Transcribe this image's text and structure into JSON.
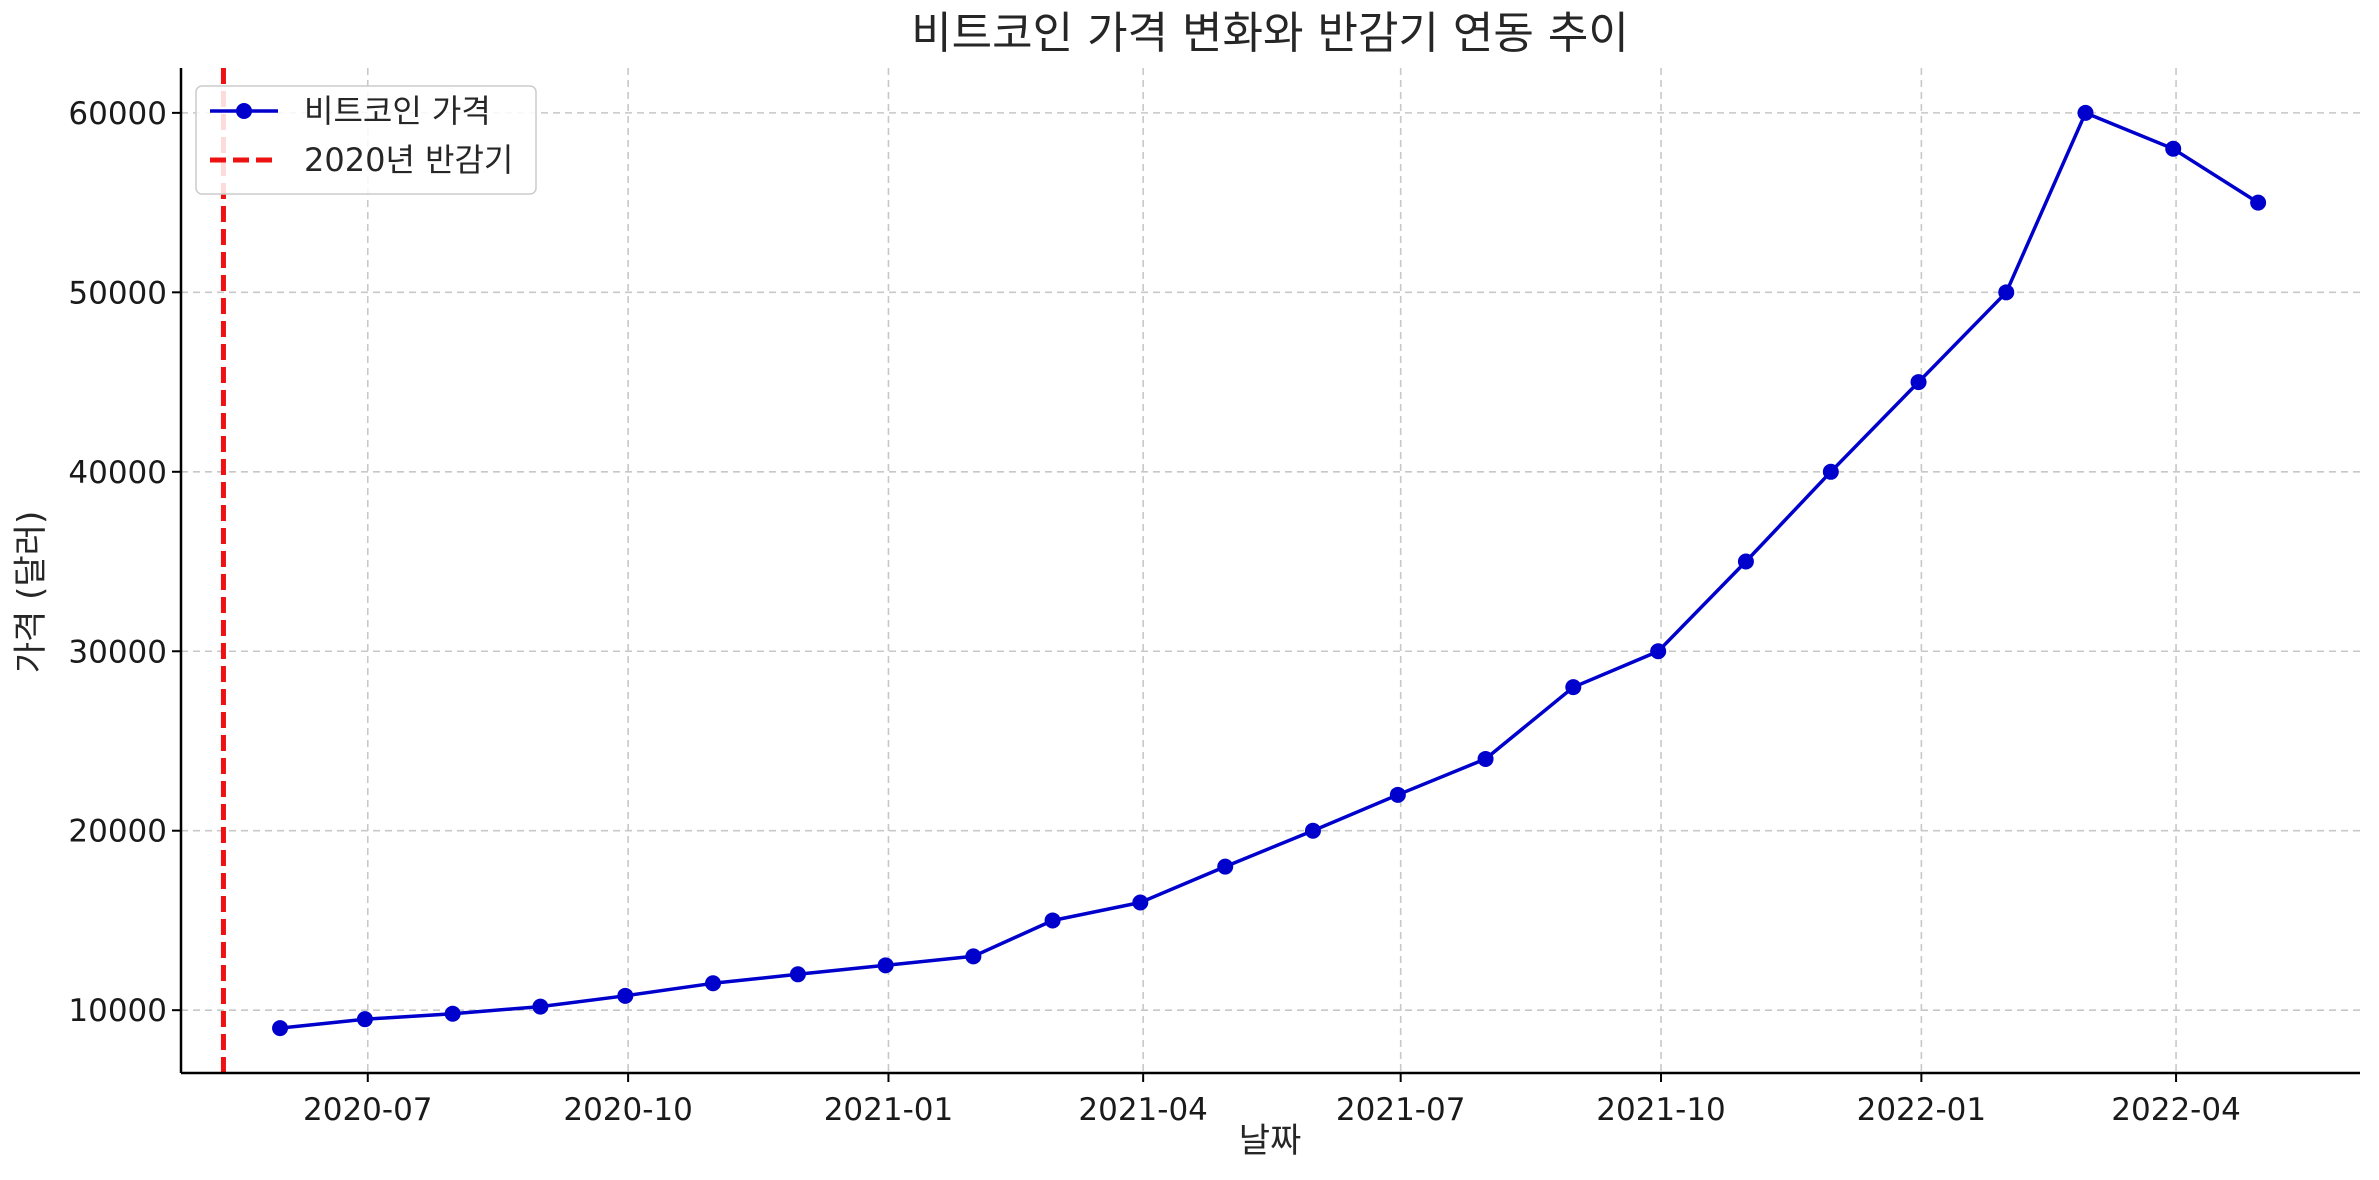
{
  "chart_data": {
    "type": "line",
    "title": "비트코인 가격 변화와 반감기 연동 추이",
    "xlabel": "날짜",
    "ylabel": "가격 (달러)",
    "x_axis_type": "date",
    "xlim": [
      "2020-04-26",
      "2022-06-05"
    ],
    "ylim": [
      6500,
      62500
    ],
    "x_ticks": [
      "2020-07",
      "2020-10",
      "2021-01",
      "2021-04",
      "2021-07",
      "2021-10",
      "2022-01",
      "2022-04"
    ],
    "y_ticks": [
      10000,
      20000,
      30000,
      40000,
      50000,
      60000
    ],
    "grid": true,
    "legend_position": "top-left",
    "series": [
      {
        "name": "비트코인 가격",
        "color": "#0000cc",
        "marker": "circle",
        "points": [
          {
            "x": "2020-05-31",
            "y": 9000
          },
          {
            "x": "2020-06-30",
            "y": 9500
          },
          {
            "x": "2020-07-31",
            "y": 9800
          },
          {
            "x": "2020-08-31",
            "y": 10200
          },
          {
            "x": "2020-09-30",
            "y": 10800
          },
          {
            "x": "2020-10-31",
            "y": 11500
          },
          {
            "x": "2020-11-30",
            "y": 12000
          },
          {
            "x": "2020-12-31",
            "y": 12500
          },
          {
            "x": "2021-01-31",
            "y": 13000
          },
          {
            "x": "2021-02-28",
            "y": 15000
          },
          {
            "x": "2021-03-31",
            "y": 16000
          },
          {
            "x": "2021-04-30",
            "y": 18000
          },
          {
            "x": "2021-05-31",
            "y": 20000
          },
          {
            "x": "2021-06-30",
            "y": 22000
          },
          {
            "x": "2021-07-31",
            "y": 24000
          },
          {
            "x": "2021-08-31",
            "y": 28000
          },
          {
            "x": "2021-09-30",
            "y": 30000
          },
          {
            "x": "2021-10-31",
            "y": 35000
          },
          {
            "x": "2021-11-30",
            "y": 40000
          },
          {
            "x": "2021-12-31",
            "y": 45000
          },
          {
            "x": "2022-01-31",
            "y": 50000
          },
          {
            "x": "2022-02-28",
            "y": 60000
          },
          {
            "x": "2022-03-31",
            "y": 58000
          },
          {
            "x": "2022-04-30",
            "y": 55000
          }
        ]
      }
    ],
    "vlines": [
      {
        "name": "2020년 반감기",
        "x": "2020-05-11",
        "color": "#ee1111",
        "style": "dashed"
      }
    ]
  }
}
